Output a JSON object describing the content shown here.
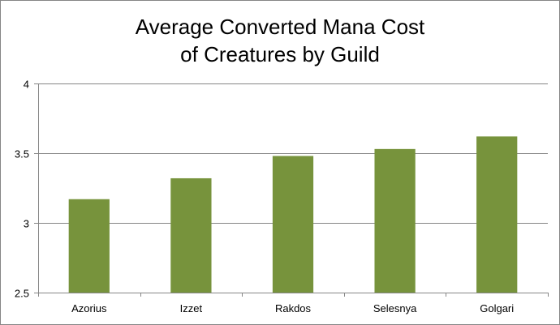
{
  "chart_data": {
    "type": "bar",
    "title_lines": [
      "Average Converted Mana Cost",
      "of Creatures by Guild"
    ],
    "categories": [
      "Azorius",
      "Izzet",
      "Rakdos",
      "Selesnya",
      "Golgari"
    ],
    "values": [
      3.17,
      3.32,
      3.48,
      3.53,
      3.62
    ],
    "ylim": [
      2.5,
      4
    ],
    "yticks": [
      2.5,
      3,
      3.5,
      4
    ],
    "ytick_labels": [
      "2.5",
      "3",
      "3.5",
      "4"
    ],
    "xlabel": "",
    "ylabel": "",
    "grid": true,
    "legend": "none",
    "bar_color": "#77933c",
    "gridline_color": "#868686"
  }
}
